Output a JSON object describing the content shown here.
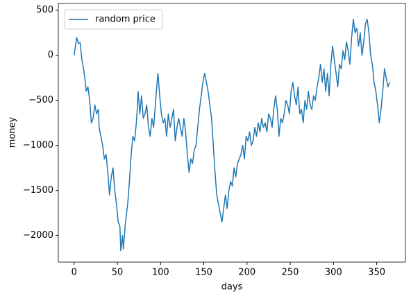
{
  "chart_data": {
    "type": "line",
    "xlabel": "days",
    "ylabel": "money",
    "x": [
      0,
      3,
      5,
      7,
      9,
      11,
      13,
      14,
      16,
      18,
      20,
      22,
      24,
      26,
      28,
      29,
      31,
      33,
      35,
      37,
      39,
      41,
      43,
      45,
      47,
      49,
      51,
      53,
      54,
      56,
      57,
      59,
      60,
      62,
      64,
      66,
      68,
      70,
      72,
      73,
      74,
      76,
      78,
      80,
      82,
      84,
      86,
      88,
      90,
      92,
      94,
      96,
      97,
      99,
      101,
      103,
      105,
      107,
      109,
      111,
      113,
      115,
      117,
      119,
      121,
      123,
      125,
      127,
      129,
      131,
      133,
      135,
      137,
      139,
      141,
      143,
      145,
      147,
      149,
      151,
      153,
      155,
      157,
      159,
      161,
      163,
      165,
      167,
      169,
      171,
      173,
      175,
      177,
      179,
      181,
      183,
      185,
      187,
      189,
      191,
      193,
      195,
      197,
      199,
      201,
      203,
      205,
      207,
      209,
      211,
      213,
      215,
      217,
      219,
      221,
      223,
      225,
      227,
      229,
      231,
      233,
      235,
      237,
      239,
      241,
      243,
      245,
      247,
      249,
      251,
      253,
      255,
      257,
      259,
      261,
      263,
      265,
      267,
      269,
      271,
      273,
      275,
      277,
      279,
      281,
      283,
      285,
      287,
      289,
      291,
      293,
      295,
      297,
      299,
      301,
      303,
      305,
      307,
      309,
      311,
      313,
      315,
      317,
      319,
      321,
      323,
      325,
      327,
      329,
      331,
      333,
      335,
      337,
      339,
      341,
      343,
      345,
      347,
      349,
      351,
      353,
      355,
      357,
      359,
      361,
      363,
      365
    ],
    "series": [
      {
        "name": "random price",
        "color": "#1f77b4",
        "values": [
          0,
          195,
          130,
          140,
          -50,
          -150,
          -300,
          -400,
          -350,
          -500,
          -750,
          -700,
          -550,
          -650,
          -600,
          -800,
          -900,
          -1000,
          -1150,
          -1100,
          -1300,
          -1550,
          -1350,
          -1250,
          -1500,
          -1650,
          -1850,
          -1900,
          -2170,
          -2000,
          -2150,
          -1900,
          -1800,
          -1650,
          -1400,
          -1100,
          -900,
          -950,
          -750,
          -600,
          -400,
          -650,
          -450,
          -700,
          -650,
          -550,
          -800,
          -900,
          -700,
          -800,
          -550,
          -300,
          -200,
          -450,
          -650,
          -750,
          -700,
          -900,
          -650,
          -800,
          -700,
          -600,
          -950,
          -800,
          -700,
          -800,
          -900,
          -700,
          -850,
          -1100,
          -1300,
          -1150,
          -1200,
          -1050,
          -1000,
          -800,
          -600,
          -450,
          -300,
          -200,
          -300,
          -400,
          -550,
          -700,
          -1000,
          -1300,
          -1550,
          -1650,
          -1750,
          -1850,
          -1700,
          -1550,
          -1700,
          -1500,
          -1400,
          -1450,
          -1250,
          -1350,
          -1200,
          -1150,
          -1100,
          -1000,
          -1150,
          -900,
          -950,
          -850,
          -1000,
          -950,
          -800,
          -900,
          -750,
          -850,
          -700,
          -800,
          -750,
          -850,
          -650,
          -700,
          -800,
          -600,
          -450,
          -600,
          -900,
          -700,
          -750,
          -650,
          -500,
          -550,
          -650,
          -400,
          -300,
          -450,
          -550,
          -350,
          -650,
          -600,
          -750,
          -500,
          -600,
          -400,
          -550,
          -600,
          -450,
          -500,
          -350,
          -250,
          -100,
          -300,
          -150,
          -400,
          -200,
          -450,
          -100,
          100,
          -50,
          -200,
          -350,
          -100,
          -150,
          50,
          -50,
          150,
          50,
          -100,
          200,
          400,
          250,
          300,
          100,
          250,
          0,
          150,
          350,
          400,
          250,
          0,
          -100,
          -300,
          -400,
          -550,
          -750,
          -600,
          -400,
          -150,
          -250,
          -350,
          -300
        ]
      }
    ],
    "xlim": [
      -18.25,
      383.25
    ],
    "ylim": [
      -2295,
      575
    ],
    "xticks": [
      0,
      50,
      100,
      150,
      200,
      250,
      300,
      350
    ],
    "yticks": [
      {
        "value": -2000,
        "label": "−2000"
      },
      {
        "value": -1500,
        "label": "−1500"
      },
      {
        "value": -1000,
        "label": "−1000"
      },
      {
        "value": -500,
        "label": "−500"
      },
      0,
      500
    ],
    "legend": "upper left"
  }
}
